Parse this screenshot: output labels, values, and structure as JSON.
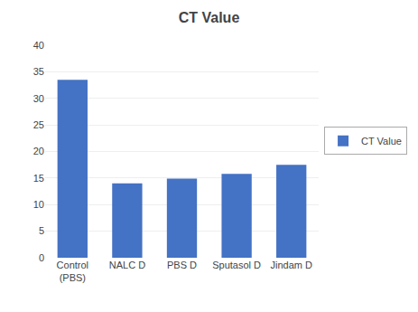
{
  "chart_data": {
    "type": "bar",
    "title": "CT Value",
    "categories": [
      "Control\n(PBS)",
      "NALC D",
      "PBS D",
      "Sputasol D",
      "Jindam D"
    ],
    "series": [
      {
        "name": "CT Value",
        "color": "#4472C4",
        "values": [
          33.5,
          14.0,
          14.9,
          15.8,
          17.5
        ]
      }
    ],
    "ylim": [
      0,
      40
    ],
    "yticks": [
      0,
      5,
      10,
      15,
      20,
      25,
      30,
      35,
      40
    ],
    "grid": true,
    "legend": "right"
  }
}
